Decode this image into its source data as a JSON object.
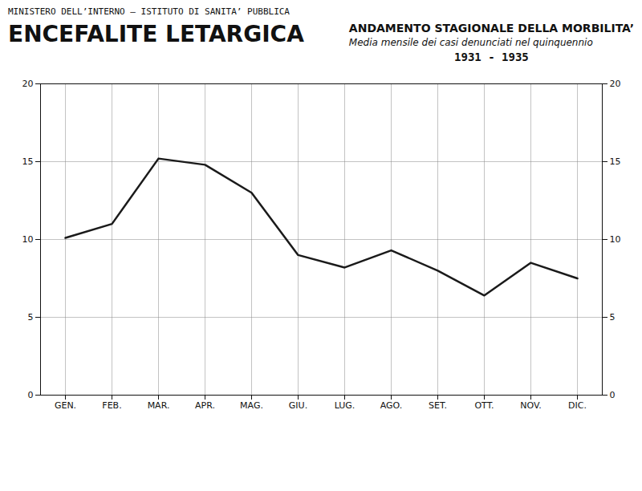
{
  "chart_data": {
    "type": "line",
    "title": "ENCEFALITE LETARGICA",
    "subtitle": [
      "ANDAMENTO STAGIONALE DELLA MORBILITA’",
      "Media mensile dei casi denunciati nel quinquennio",
      "1931 - 1935"
    ],
    "annotations": [
      "MINISTERO DELL’INTERNO – ISTITUTO DI SANITA’ PUBBLICA"
    ],
    "categories": [
      "GEN.",
      "FEB.",
      "MAR.",
      "APR.",
      "MAG.",
      "GIU.",
      "LUG.",
      "AGO.",
      "SET.",
      "OTT.",
      "NOV.",
      "DIC."
    ],
    "values": [
      10.1,
      11.0,
      15.2,
      14.8,
      13.0,
      9.0,
      8.2,
      9.3,
      8.0,
      6.4,
      8.5,
      7.5
    ],
    "color": "#1a1a1a",
    "ylim": [
      0,
      20
    ],
    "yticks": [
      0,
      5,
      10,
      15,
      20
    ],
    "grid": true
  }
}
